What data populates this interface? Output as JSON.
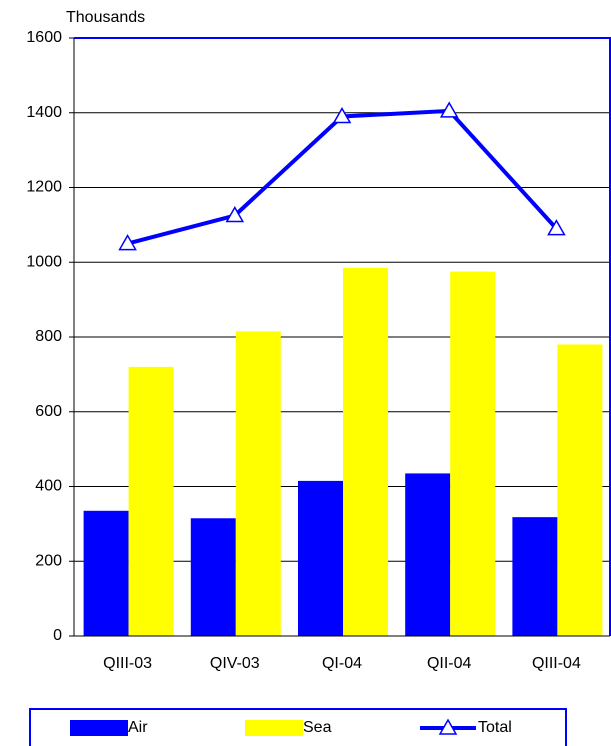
{
  "chart_data": {
    "type": "bar_line",
    "y_unit_label": "Thousands",
    "categories": [
      "QIII-03",
      "QIV-03",
      "QI-04",
      "QII-04",
      "QIII-04"
    ],
    "series": [
      {
        "name": "Air",
        "type": "bar",
        "color": "#0000ff",
        "values": [
          335,
          315,
          415,
          435,
          318
        ]
      },
      {
        "name": "Sea",
        "type": "bar",
        "color": "#ffff00",
        "values": [
          720,
          815,
          985,
          975,
          780
        ]
      },
      {
        "name": "Total",
        "type": "line",
        "color": "#0000ff",
        "marker": "triangle",
        "values": [
          1050,
          1125,
          1390,
          1405,
          1090
        ]
      }
    ],
    "ylim": [
      0,
      1600
    ],
    "yticks": [
      0,
      200,
      400,
      600,
      800,
      1000,
      1200,
      1400,
      1600
    ],
    "grid": true,
    "legend": "bottom"
  }
}
